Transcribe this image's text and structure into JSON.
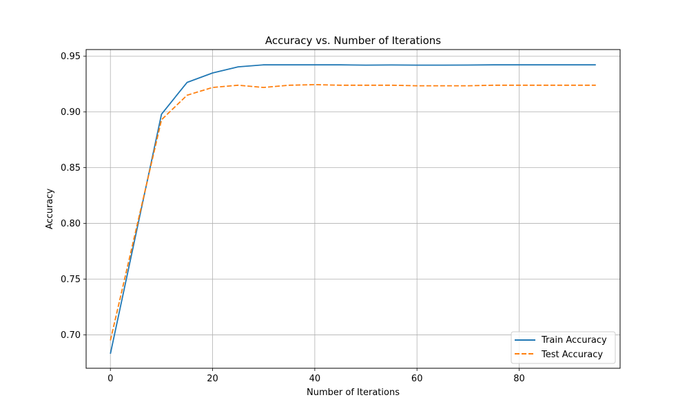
{
  "chart_data": {
    "type": "line",
    "title": "Accuracy vs. Number of Iterations",
    "xlabel": "Number of Iterations",
    "ylabel": "Accuracy",
    "xlim": [
      -4.75,
      99.75
    ],
    "ylim": [
      0.67,
      0.956
    ],
    "xticks": [
      0,
      20,
      40,
      60,
      80
    ],
    "yticks": [
      0.7,
      0.75,
      0.8,
      0.85,
      0.9,
      0.95
    ],
    "grid": true,
    "legend_position": "lower-right",
    "x": [
      0,
      10,
      15,
      20,
      25,
      30,
      35,
      40,
      45,
      50,
      55,
      60,
      65,
      70,
      75,
      80,
      85,
      90,
      95
    ],
    "series": [
      {
        "name": "Train Accuracy",
        "color": "#1f77b4",
        "style": "solid",
        "values": [
          0.683,
          0.898,
          0.9265,
          0.935,
          0.9405,
          0.9423,
          0.9423,
          0.9423,
          0.9423,
          0.942,
          0.9422,
          0.942,
          0.942,
          0.9421,
          0.9423,
          0.9423,
          0.9423,
          0.9423,
          0.9423
        ]
      },
      {
        "name": "Test Accuracy",
        "color": "#ff7f0e",
        "style": "dashed",
        "values": [
          0.695,
          0.893,
          0.915,
          0.922,
          0.924,
          0.922,
          0.924,
          0.9245,
          0.924,
          0.924,
          0.924,
          0.9235,
          0.9235,
          0.9235,
          0.924,
          0.924,
          0.924,
          0.924,
          0.924
        ]
      }
    ]
  }
}
